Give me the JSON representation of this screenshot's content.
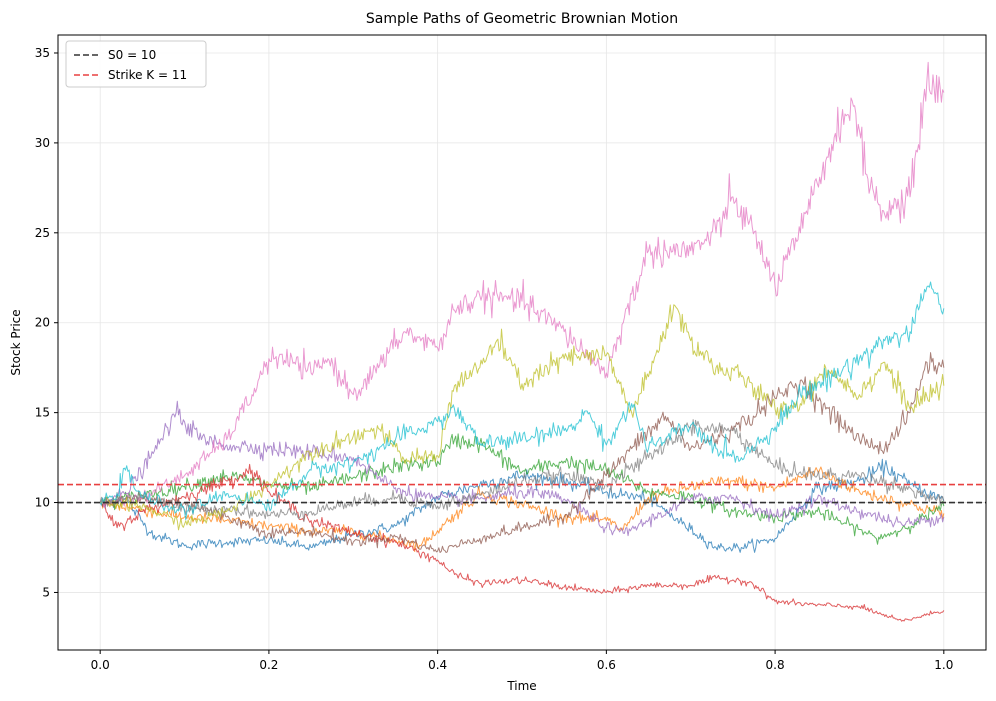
{
  "chart_data": {
    "type": "line",
    "title": "Sample Paths of Geometric Brownian Motion",
    "xlabel": "Time",
    "ylabel": "Stock Price",
    "xlim": [
      -0.05,
      1.05
    ],
    "ylim": [
      1.8,
      36.0
    ],
    "xticks": [
      0.0,
      0.2,
      0.4,
      0.6,
      0.8,
      1.0
    ],
    "xtick_labels": [
      "0.0",
      "0.2",
      "0.4",
      "0.6",
      "0.8",
      "1.0"
    ],
    "yticks": [
      5,
      10,
      15,
      20,
      25,
      30,
      35
    ],
    "ytick_labels": [
      "5",
      "10",
      "15",
      "20",
      "25",
      "30",
      "35"
    ],
    "grid": true,
    "legend_position": "top-left",
    "reference_lines": [
      {
        "label": "S0 = 10",
        "y": 10,
        "color": "#333333",
        "style": "dashed"
      },
      {
        "label": "Strike K = 11",
        "y": 11,
        "color": "#e84040",
        "style": "dashed"
      }
    ],
    "series": [
      {
        "color": "#1f77b4",
        "points": [
          [
            0,
            10
          ],
          [
            0.03,
            10.2
          ],
          [
            0.06,
            8.3
          ],
          [
            0.1,
            7.6
          ],
          [
            0.15,
            7.8
          ],
          [
            0.2,
            7.9
          ],
          [
            0.25,
            7.5
          ],
          [
            0.3,
            8.2
          ],
          [
            0.35,
            8.7
          ],
          [
            0.4,
            10.3
          ],
          [
            0.45,
            11.0
          ],
          [
            0.5,
            11.5
          ],
          [
            0.55,
            11.2
          ],
          [
            0.6,
            10.6
          ],
          [
            0.65,
            10.2
          ],
          [
            0.7,
            8.5
          ],
          [
            0.73,
            7.5
          ],
          [
            0.76,
            7.5
          ],
          [
            0.8,
            8.0
          ],
          [
            0.85,
            10.8
          ],
          [
            0.9,
            11.2
          ],
          [
            0.93,
            12.0
          ],
          [
            0.96,
            11.0
          ],
          [
            1.0,
            10.1
          ]
        ]
      },
      {
        "color": "#ff7f0e",
        "points": [
          [
            0,
            10
          ],
          [
            0.05,
            9.6
          ],
          [
            0.1,
            9.2
          ],
          [
            0.15,
            9.0
          ],
          [
            0.2,
            8.7
          ],
          [
            0.25,
            8.4
          ],
          [
            0.3,
            8.4
          ],
          [
            0.35,
            7.9
          ],
          [
            0.38,
            7.6
          ],
          [
            0.42,
            9.3
          ],
          [
            0.45,
            10.5
          ],
          [
            0.5,
            9.9
          ],
          [
            0.55,
            9.2
          ],
          [
            0.6,
            9.0
          ],
          [
            0.62,
            8.5
          ],
          [
            0.65,
            10.3
          ],
          [
            0.7,
            10.9
          ],
          [
            0.75,
            11.2
          ],
          [
            0.8,
            10.8
          ],
          [
            0.85,
            11.8
          ],
          [
            0.9,
            10.6
          ],
          [
            0.95,
            10.0
          ],
          [
            1.0,
            9.4
          ]
        ]
      },
      {
        "color": "#2ca02c",
        "points": [
          [
            0,
            10
          ],
          [
            0.05,
            10.4
          ],
          [
            0.1,
            10.9
          ],
          [
            0.15,
            11.5
          ],
          [
            0.2,
            11.0
          ],
          [
            0.25,
            10.8
          ],
          [
            0.3,
            11.4
          ],
          [
            0.35,
            12.0
          ],
          [
            0.4,
            12.3
          ],
          [
            0.42,
            13.5
          ],
          [
            0.45,
            13.3
          ],
          [
            0.5,
            11.7
          ],
          [
            0.55,
            12.3
          ],
          [
            0.6,
            11.8
          ],
          [
            0.65,
            10.6
          ],
          [
            0.7,
            10.3
          ],
          [
            0.75,
            9.5
          ],
          [
            0.8,
            9.2
          ],
          [
            0.85,
            9.5
          ],
          [
            0.9,
            8.5
          ],
          [
            0.92,
            8.0
          ],
          [
            0.95,
            8.5
          ],
          [
            1.0,
            9.8
          ]
        ]
      },
      {
        "color": "#d62728",
        "points": [
          [
            0,
            10
          ],
          [
            0.02,
            8.6
          ],
          [
            0.05,
            9.5
          ],
          [
            0.1,
            10.3
          ],
          [
            0.15,
            11.2
          ],
          [
            0.18,
            11.8
          ],
          [
            0.2,
            10.6
          ],
          [
            0.25,
            9.0
          ],
          [
            0.3,
            8.3
          ],
          [
            0.35,
            7.8
          ],
          [
            0.4,
            6.8
          ],
          [
            0.42,
            6.0
          ],
          [
            0.45,
            5.5
          ],
          [
            0.5,
            5.7
          ],
          [
            0.55,
            5.3
          ],
          [
            0.6,
            5.0
          ],
          [
            0.65,
            5.4
          ],
          [
            0.7,
            5.4
          ],
          [
            0.73,
            5.8
          ],
          [
            0.77,
            5.6
          ],
          [
            0.8,
            4.5
          ],
          [
            0.85,
            4.3
          ],
          [
            0.9,
            4.2
          ],
          [
            0.95,
            3.4
          ],
          [
            1.0,
            4.0
          ]
        ]
      },
      {
        "color": "#9467bd",
        "points": [
          [
            0,
            10
          ],
          [
            0.03,
            10.5
          ],
          [
            0.06,
            12.5
          ],
          [
            0.09,
            15.0
          ],
          [
            0.12,
            13.5
          ],
          [
            0.15,
            13.2
          ],
          [
            0.2,
            13.0
          ],
          [
            0.25,
            12.8
          ],
          [
            0.3,
            12.5
          ],
          [
            0.33,
            11.4
          ],
          [
            0.36,
            10.6
          ],
          [
            0.4,
            10.2
          ],
          [
            0.45,
            10.2
          ],
          [
            0.5,
            10.6
          ],
          [
            0.55,
            10.2
          ],
          [
            0.6,
            8.6
          ],
          [
            0.62,
            8.3
          ],
          [
            0.65,
            9.0
          ],
          [
            0.7,
            10.2
          ],
          [
            0.75,
            10.3
          ],
          [
            0.8,
            9.2
          ],
          [
            0.85,
            10.2
          ],
          [
            0.9,
            9.5
          ],
          [
            0.95,
            8.8
          ],
          [
            1.0,
            9.2
          ]
        ]
      },
      {
        "color": "#8c564b",
        "points": [
          [
            0,
            10
          ],
          [
            0.05,
            10.2
          ],
          [
            0.1,
            10.0
          ],
          [
            0.15,
            9.2
          ],
          [
            0.2,
            8.3
          ],
          [
            0.25,
            8.4
          ],
          [
            0.3,
            7.8
          ],
          [
            0.35,
            8.1
          ],
          [
            0.4,
            7.3
          ],
          [
            0.45,
            8.0
          ],
          [
            0.5,
            8.6
          ],
          [
            0.55,
            9.2
          ],
          [
            0.6,
            11.5
          ],
          [
            0.63,
            13.0
          ],
          [
            0.67,
            14.8
          ],
          [
            0.7,
            13.0
          ],
          [
            0.75,
            14.0
          ],
          [
            0.8,
            15.8
          ],
          [
            0.83,
            16.8
          ],
          [
            0.86,
            15.2
          ],
          [
            0.9,
            13.5
          ],
          [
            0.93,
            13.0
          ],
          [
            0.96,
            15.0
          ],
          [
            0.98,
            17.8
          ],
          [
            1.0,
            17.5
          ]
        ]
      },
      {
        "color": "#e377c2",
        "points": [
          [
            0,
            10
          ],
          [
            0.05,
            10.3
          ],
          [
            0.1,
            11.5
          ],
          [
            0.15,
            13.5
          ],
          [
            0.18,
            16.0
          ],
          [
            0.2,
            18.0
          ],
          [
            0.23,
            17.8
          ],
          [
            0.25,
            17.2
          ],
          [
            0.27,
            18.0
          ],
          [
            0.3,
            16.0
          ],
          [
            0.33,
            17.5
          ],
          [
            0.36,
            19.5
          ],
          [
            0.4,
            18.6
          ],
          [
            0.42,
            20.7
          ],
          [
            0.45,
            21.5
          ],
          [
            0.5,
            21.2
          ],
          [
            0.55,
            19.5
          ],
          [
            0.6,
            17.2
          ],
          [
            0.62,
            20.0
          ],
          [
            0.65,
            24.0
          ],
          [
            0.7,
            24.0
          ],
          [
            0.73,
            25.0
          ],
          [
            0.75,
            27.0
          ],
          [
            0.78,
            24.5
          ],
          [
            0.8,
            22.0
          ],
          [
            0.83,
            25.0
          ],
          [
            0.86,
            29.0
          ],
          [
            0.89,
            32.5
          ],
          [
            0.91,
            28.0
          ],
          [
            0.93,
            26.0
          ],
          [
            0.96,
            27.0
          ],
          [
            0.98,
            33.5
          ],
          [
            1.0,
            32.8
          ]
        ]
      },
      {
        "color": "#7f7f7f",
        "points": [
          [
            0,
            10
          ],
          [
            0.05,
            10.4
          ],
          [
            0.1,
            9.6
          ],
          [
            0.15,
            9.7
          ],
          [
            0.2,
            9.3
          ],
          [
            0.25,
            9.5
          ],
          [
            0.3,
            10.0
          ],
          [
            0.35,
            10.3
          ],
          [
            0.4,
            9.8
          ],
          [
            0.45,
            10.4
          ],
          [
            0.5,
            11.2
          ],
          [
            0.55,
            11.5
          ],
          [
            0.6,
            11.0
          ],
          [
            0.65,
            12.5
          ],
          [
            0.7,
            14.2
          ],
          [
            0.75,
            14.0
          ],
          [
            0.8,
            12.0
          ],
          [
            0.85,
            11.5
          ],
          [
            0.9,
            11.5
          ],
          [
            0.95,
            10.9
          ],
          [
            1.0,
            10.0
          ]
        ]
      },
      {
        "color": "#bcbd22",
        "points": [
          [
            0,
            10
          ],
          [
            0.05,
            9.8
          ],
          [
            0.1,
            8.8
          ],
          [
            0.15,
            9.5
          ],
          [
            0.2,
            11.0
          ],
          [
            0.25,
            12.8
          ],
          [
            0.3,
            13.7
          ],
          [
            0.33,
            14.1
          ],
          [
            0.36,
            12.4
          ],
          [
            0.4,
            12.6
          ],
          [
            0.42,
            16.5
          ],
          [
            0.45,
            17.5
          ],
          [
            0.47,
            19.0
          ],
          [
            0.5,
            16.6
          ],
          [
            0.55,
            18.0
          ],
          [
            0.6,
            18.2
          ],
          [
            0.63,
            15.0
          ],
          [
            0.65,
            17.0
          ],
          [
            0.68,
            21.0
          ],
          [
            0.7,
            19.0
          ],
          [
            0.73,
            17.5
          ],
          [
            0.76,
            17.0
          ],
          [
            0.8,
            15.2
          ],
          [
            0.83,
            15.5
          ],
          [
            0.86,
            17.5
          ],
          [
            0.9,
            16.0
          ],
          [
            0.93,
            17.8
          ],
          [
            0.96,
            15.2
          ],
          [
            1.0,
            16.5
          ]
        ]
      },
      {
        "color": "#17becf",
        "points": [
          [
            0,
            10
          ],
          [
            0.02,
            10.5
          ],
          [
            0.03,
            11.8
          ],
          [
            0.05,
            10.3
          ],
          [
            0.1,
            9.5
          ],
          [
            0.15,
            10.5
          ],
          [
            0.2,
            9.8
          ],
          [
            0.25,
            11.8
          ],
          [
            0.3,
            12.2
          ],
          [
            0.35,
            13.5
          ],
          [
            0.4,
            14.5
          ],
          [
            0.42,
            15.2
          ],
          [
            0.45,
            13.3
          ],
          [
            0.5,
            13.5
          ],
          [
            0.55,
            14.0
          ],
          [
            0.58,
            15.0
          ],
          [
            0.6,
            13.2
          ],
          [
            0.63,
            15.5
          ],
          [
            0.65,
            13.0
          ],
          [
            0.7,
            14.3
          ],
          [
            0.73,
            13.0
          ],
          [
            0.76,
            12.5
          ],
          [
            0.8,
            14.2
          ],
          [
            0.83,
            16.0
          ],
          [
            0.86,
            16.8
          ],
          [
            0.9,
            18.0
          ],
          [
            0.93,
            19.0
          ],
          [
            0.96,
            19.5
          ],
          [
            0.98,
            22.0
          ],
          [
            1.0,
            20.8
          ]
        ]
      }
    ]
  }
}
